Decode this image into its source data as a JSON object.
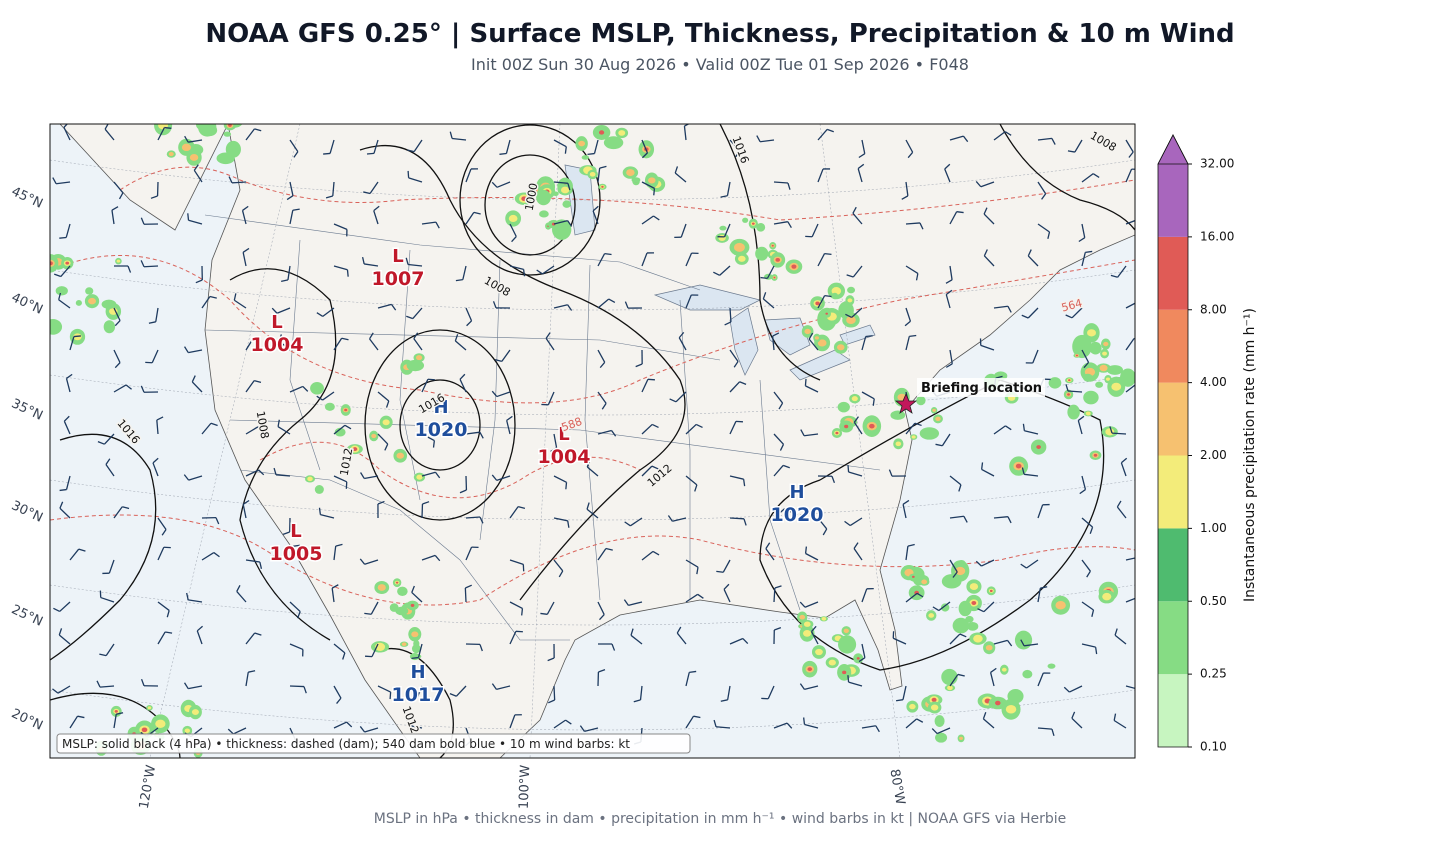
{
  "header": {
    "title": "NOAA GFS 0.25°  |  Surface MSLP, Thickness, Precipitation & 10 m Wind",
    "subtitle": "Init 00Z Sun 30 Aug 2026  •  Valid 00Z Tue 01 Sep 2026  •  F048"
  },
  "map": {
    "lat_labels": [
      "45°N",
      "40°N",
      "35°N",
      "30°N",
      "25°N",
      "20°N"
    ],
    "lon_labels": [
      "120°W",
      "100°W",
      "80°W"
    ],
    "pressure_centers": [
      {
        "kind": "L",
        "value": "1007",
        "color": "#c0182a"
      },
      {
        "kind": "L",
        "value": "1004",
        "color": "#c0182a"
      },
      {
        "kind": "H",
        "value": "1020",
        "color": "#1f4e9c"
      },
      {
        "kind": "L",
        "value": "1004",
        "color": "#c0182a"
      },
      {
        "kind": "H",
        "value": "1020",
        "color": "#1f4e9c"
      },
      {
        "kind": "L",
        "value": "1005",
        "color": "#c0182a"
      },
      {
        "kind": "H",
        "value": "1017",
        "color": "#1f4e9c"
      }
    ],
    "contour_labels": [
      {
        "text": "1000",
        "color": "#111111"
      },
      {
        "text": "1008",
        "color": "#111111"
      },
      {
        "text": "1016",
        "color": "#111111"
      },
      {
        "text": "1008",
        "color": "#111111"
      },
      {
        "text": "1016",
        "color": "#111111"
      },
      {
        "text": "1008",
        "color": "#111111"
      },
      {
        "text": "1016",
        "color": "#111111"
      },
      {
        "text": "1012",
        "color": "#111111"
      },
      {
        "text": "1012",
        "color": "#111111"
      },
      {
        "text": "588",
        "color": "#d9625a"
      },
      {
        "text": "564",
        "color": "#d9625a"
      },
      {
        "text": "1012",
        "color": "#111111"
      }
    ],
    "briefing_location": "Briefing location",
    "legend_note": "MSLP: solid black (4 hPa)  •  thickness: dashed (dam); 540 dam bold blue  •  10 m wind barbs: kt"
  },
  "colorbar": {
    "label": "Instantaneous precipitation rate (mm h⁻¹)",
    "ticks": [
      {
        "value": 0.1,
        "label": "0.10"
      },
      {
        "value": 0.25,
        "label": "0.25"
      },
      {
        "value": 0.5,
        "label": "0.50"
      },
      {
        "value": 1,
        "label": "1.00"
      },
      {
        "value": 2,
        "label": "2.00"
      },
      {
        "value": 4,
        "label": "4.00"
      },
      {
        "value": 8,
        "label": "8.00"
      },
      {
        "value": 16,
        "label": "16.00"
      },
      {
        "value": 32,
        "label": "32.00"
      }
    ],
    "colors": [
      "#c7f5c0",
      "#86dc84",
      "#4fbb6f",
      "#f3ec7a",
      "#f6c170",
      "#f0895e",
      "#e05b56",
      "#a866bd"
    ]
  },
  "footer": "MSLP in hPa • thickness in dam • precipitation in mm h⁻¹ • wind barbs in kt  |  NOAA GFS via Herbie"
}
